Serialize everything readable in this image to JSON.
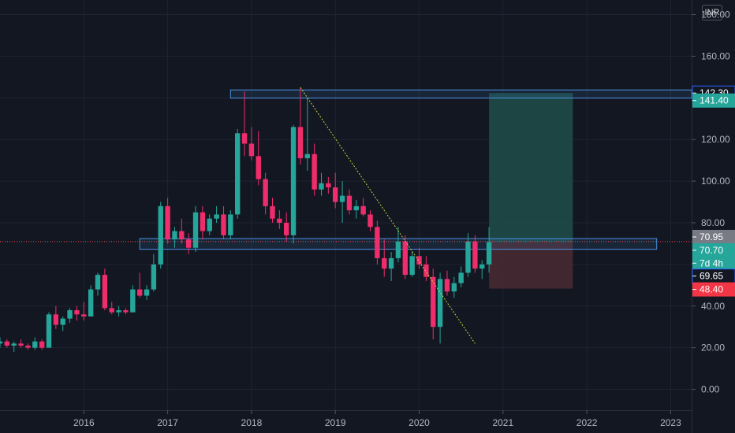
{
  "currency_label": "INR",
  "colors": {
    "background": "#131722",
    "grid": "#1f2333",
    "up": "#26a69a",
    "down": "#ef2d6c",
    "zone_border": "#4a90e2",
    "trendline": "#c7d33a",
    "reward": "#1e4d4a",
    "risk": "#4a2a32"
  },
  "chart_data": {
    "type": "candlestick",
    "timeframe_label": "",
    "x_ticks": [
      "2016",
      "2017",
      "2018",
      "2019",
      "2020",
      "2021",
      "2022",
      "2023"
    ],
    "y_ticks": [
      "0.00",
      "20.00",
      "40.00",
      "60.00",
      "80.00",
      "100.00",
      "120.00",
      "140.00",
      "160.00",
      "180.00"
    ],
    "ylim": [
      -10,
      187
    ],
    "xlim": [
      "2015-01",
      "2023-04"
    ],
    "candles": [
      {
        "t": "2015-01",
        "o": 22,
        "h": 25,
        "l": 20,
        "c": 23
      },
      {
        "t": "2015-02",
        "o": 23,
        "h": 24,
        "l": 20,
        "c": 21
      },
      {
        "t": "2015-03",
        "o": 21,
        "h": 23,
        "l": 18,
        "c": 22
      },
      {
        "t": "2015-04",
        "o": 22,
        "h": 24,
        "l": 20,
        "c": 21
      },
      {
        "t": "2015-05",
        "o": 21,
        "h": 22,
        "l": 19,
        "c": 20
      },
      {
        "t": "2015-06",
        "o": 20,
        "h": 25,
        "l": 19,
        "c": 23
      },
      {
        "t": "2015-07",
        "o": 23,
        "h": 24,
        "l": 19,
        "c": 20
      },
      {
        "t": "2015-08",
        "o": 20,
        "h": 37,
        "l": 20,
        "c": 36
      },
      {
        "t": "2015-09",
        "o": 36,
        "h": 40,
        "l": 29,
        "c": 31
      },
      {
        "t": "2015-10",
        "o": 31,
        "h": 35,
        "l": 28,
        "c": 34
      },
      {
        "t": "2015-11",
        "o": 34,
        "h": 39,
        "l": 32,
        "c": 38
      },
      {
        "t": "2015-12",
        "o": 38,
        "h": 40,
        "l": 33,
        "c": 36
      },
      {
        "t": "2016-01",
        "o": 36,
        "h": 42,
        "l": 33,
        "c": 35
      },
      {
        "t": "2016-02",
        "o": 35,
        "h": 50,
        "l": 35,
        "c": 48
      },
      {
        "t": "2016-03",
        "o": 48,
        "h": 56,
        "l": 45,
        "c": 55
      },
      {
        "t": "2016-04",
        "o": 55,
        "h": 58,
        "l": 38,
        "c": 39
      },
      {
        "t": "2016-05",
        "o": 39,
        "h": 42,
        "l": 36,
        "c": 37
      },
      {
        "t": "2016-06",
        "o": 37,
        "h": 40,
        "l": 35,
        "c": 38
      },
      {
        "t": "2016-07",
        "o": 38,
        "h": 39,
        "l": 36,
        "c": 37
      },
      {
        "t": "2016-08",
        "o": 37,
        "h": 50,
        "l": 37,
        "c": 48
      },
      {
        "t": "2016-09",
        "o": 48,
        "h": 56,
        "l": 44,
        "c": 45
      },
      {
        "t": "2016-10",
        "o": 45,
        "h": 50,
        "l": 43,
        "c": 48
      },
      {
        "t": "2016-11",
        "o": 48,
        "h": 65,
        "l": 47,
        "c": 60
      },
      {
        "t": "2016-12",
        "o": 60,
        "h": 90,
        "l": 58,
        "c": 88
      },
      {
        "t": "2017-01",
        "o": 88,
        "h": 92,
        "l": 70,
        "c": 72
      },
      {
        "t": "2017-02",
        "o": 72,
        "h": 78,
        "l": 68,
        "c": 76
      },
      {
        "t": "2017-03",
        "o": 76,
        "h": 82,
        "l": 70,
        "c": 72
      },
      {
        "t": "2017-04",
        "o": 72,
        "h": 75,
        "l": 65,
        "c": 68
      },
      {
        "t": "2017-05",
        "o": 68,
        "h": 88,
        "l": 66,
        "c": 85
      },
      {
        "t": "2017-06",
        "o": 85,
        "h": 88,
        "l": 72,
        "c": 76
      },
      {
        "t": "2017-07",
        "o": 76,
        "h": 84,
        "l": 74,
        "c": 82
      },
      {
        "t": "2017-08",
        "o": 82,
        "h": 88,
        "l": 80,
        "c": 84
      },
      {
        "t": "2017-09",
        "o": 84,
        "h": 88,
        "l": 72,
        "c": 74
      },
      {
        "t": "2017-10",
        "o": 74,
        "h": 86,
        "l": 72,
        "c": 84
      },
      {
        "t": "2017-11",
        "o": 84,
        "h": 125,
        "l": 82,
        "c": 123
      },
      {
        "t": "2017-12",
        "o": 123,
        "h": 143,
        "l": 112,
        "c": 118
      },
      {
        "t": "2018-01",
        "o": 118,
        "h": 126,
        "l": 110,
        "c": 112
      },
      {
        "t": "2018-02",
        "o": 112,
        "h": 124,
        "l": 98,
        "c": 101
      },
      {
        "t": "2018-03",
        "o": 101,
        "h": 104,
        "l": 84,
        "c": 88
      },
      {
        "t": "2018-04",
        "o": 88,
        "h": 92,
        "l": 80,
        "c": 82
      },
      {
        "t": "2018-05",
        "o": 82,
        "h": 86,
        "l": 77,
        "c": 80
      },
      {
        "t": "2018-06",
        "o": 80,
        "h": 85,
        "l": 71,
        "c": 74
      },
      {
        "t": "2018-07",
        "o": 74,
        "h": 127,
        "l": 70,
        "c": 126
      },
      {
        "t": "2018-08",
        "o": 126,
        "h": 145,
        "l": 108,
        "c": 111
      },
      {
        "t": "2018-09",
        "o": 111,
        "h": 140,
        "l": 105,
        "c": 113
      },
      {
        "t": "2018-10",
        "o": 113,
        "h": 118,
        "l": 93,
        "c": 96
      },
      {
        "t": "2018-11",
        "o": 96,
        "h": 104,
        "l": 93,
        "c": 99
      },
      {
        "t": "2018-12",
        "o": 99,
        "h": 102,
        "l": 94,
        "c": 97
      },
      {
        "t": "2019-01",
        "o": 97,
        "h": 104,
        "l": 87,
        "c": 90
      },
      {
        "t": "2019-02",
        "o": 90,
        "h": 100,
        "l": 80,
        "c": 93
      },
      {
        "t": "2019-03",
        "o": 93,
        "h": 96,
        "l": 84,
        "c": 86
      },
      {
        "t": "2019-04",
        "o": 86,
        "h": 91,
        "l": 82,
        "c": 88
      },
      {
        "t": "2019-05",
        "o": 88,
        "h": 92,
        "l": 83,
        "c": 84
      },
      {
        "t": "2019-06",
        "o": 84,
        "h": 86,
        "l": 76,
        "c": 78
      },
      {
        "t": "2019-07",
        "o": 78,
        "h": 81,
        "l": 60,
        "c": 63
      },
      {
        "t": "2019-08",
        "o": 63,
        "h": 72,
        "l": 54,
        "c": 58
      },
      {
        "t": "2019-09",
        "o": 58,
        "h": 66,
        "l": 52,
        "c": 63
      },
      {
        "t": "2019-10",
        "o": 63,
        "h": 78,
        "l": 61,
        "c": 71
      },
      {
        "t": "2019-11",
        "o": 71,
        "h": 74,
        "l": 53,
        "c": 55
      },
      {
        "t": "2019-12",
        "o": 55,
        "h": 66,
        "l": 54,
        "c": 64
      },
      {
        "t": "2020-01",
        "o": 64,
        "h": 68,
        "l": 58,
        "c": 60
      },
      {
        "t": "2020-02",
        "o": 60,
        "h": 64,
        "l": 52,
        "c": 54
      },
      {
        "t": "2020-03",
        "o": 54,
        "h": 58,
        "l": 24,
        "c": 30
      },
      {
        "t": "2020-04",
        "o": 30,
        "h": 56,
        "l": 22,
        "c": 53
      },
      {
        "t": "2020-05",
        "o": 53,
        "h": 57,
        "l": 45,
        "c": 47
      },
      {
        "t": "2020-06",
        "o": 47,
        "h": 54,
        "l": 44,
        "c": 51
      },
      {
        "t": "2020-07",
        "o": 51,
        "h": 59,
        "l": 49,
        "c": 56
      },
      {
        "t": "2020-08",
        "o": 56,
        "h": 75,
        "l": 54,
        "c": 71
      },
      {
        "t": "2020-09",
        "o": 71,
        "h": 74,
        "l": 56,
        "c": 58
      },
      {
        "t": "2020-10",
        "o": 58,
        "h": 62,
        "l": 53,
        "c": 60
      },
      {
        "t": "2020-11",
        "o": 60,
        "h": 78,
        "l": 56,
        "c": 70.7
      }
    ],
    "zones": [
      {
        "name": "resistance-zone",
        "low": 141.4,
        "high": 142.3,
        "from": "2017-10",
        "to": "2023-04"
      },
      {
        "name": "support-zone",
        "low": 68.8,
        "high": 70.9,
        "from": "2016-09",
        "to": "2022-11"
      }
    ],
    "trendline": {
      "from": {
        "t": "2018-08",
        "v": 145
      },
      "to": {
        "t": "2020-09",
        "v": 22
      }
    },
    "current_price_line": 70.95,
    "position": {
      "entry": 70.7,
      "target": 142.3,
      "stop": 48.4,
      "from": "2020-11",
      "to": "2021-11"
    },
    "price_tags": [
      {
        "label": "142.30",
        "value": 142.3,
        "color": "#2962ff",
        "outlined": true
      },
      {
        "label": "141.40",
        "value": 138.7,
        "color": "#26a69a",
        "outlined": false
      },
      {
        "label": "70.95",
        "value": 73.2,
        "color": "#787b86",
        "outlined": false
      },
      {
        "label": "70.70",
        "value": 66.8,
        "color": "#26a69a",
        "outlined": false
      },
      {
        "label": "7d 4h",
        "value": 60.6,
        "color": "#26a69a",
        "outlined": false
      },
      {
        "label": "69.65",
        "value": 54.4,
        "color": "#2962ff",
        "outlined": true
      },
      {
        "label": "48.40",
        "value": 48.0,
        "color": "#f23645",
        "outlined": false
      }
    ]
  }
}
